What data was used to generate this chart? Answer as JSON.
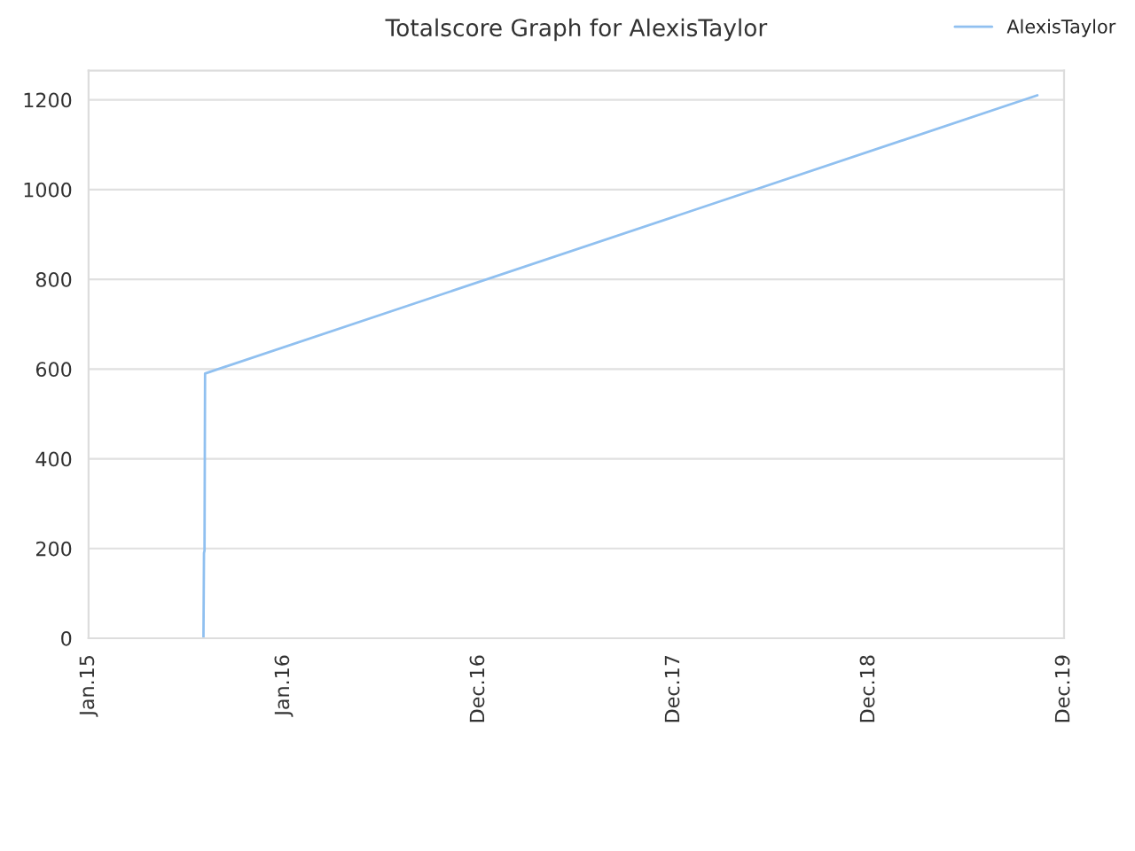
{
  "chart_data": {
    "type": "line",
    "title": "Totalscore Graph for AlexisTaylor",
    "series": [
      {
        "name": "AlexisTaylor",
        "color": "#90c0f0",
        "x": [
          "2015-08-04",
          "2015-08-05",
          "2015-08-06",
          "2015-08-07",
          "2019-11-11"
        ],
        "values": [
          0,
          190,
          195,
          590,
          1210
        ]
      }
    ],
    "xlim": [
      "2015-01-01",
      "2019-12-31"
    ],
    "xticks": [
      {
        "value": "2015-01-01",
        "label": "Jan.15"
      },
      {
        "value": "2016-01-01",
        "label": "Jan.16"
      },
      {
        "value": "2016-12-31",
        "label": "Dec.16"
      },
      {
        "value": "2017-12-31",
        "label": "Dec.17"
      },
      {
        "value": "2018-12-31",
        "label": "Dec.18"
      },
      {
        "value": "2019-12-31",
        "label": "Dec.19"
      }
    ],
    "ylim": [
      0,
      1265
    ],
    "yticks": [
      0,
      200,
      400,
      600,
      800,
      1000,
      1200
    ],
    "grid": "y",
    "legend": "top right",
    "marker": "none",
    "line_style": "solid"
  }
}
